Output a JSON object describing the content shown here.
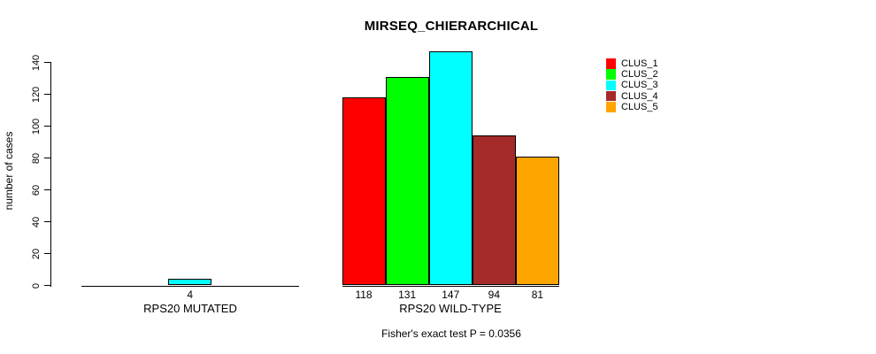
{
  "chart_data": {
    "type": "bar",
    "title": "MIRSEQ_CHIERARCHICAL",
    "ylabel": "number of cases",
    "annotation": "Fisher's exact test P = 0.0356",
    "ylim": [
      0,
      140
    ],
    "yticks": [
      0,
      20,
      40,
      60,
      80,
      100,
      120,
      140
    ],
    "grid": false,
    "legend_position": "top-right",
    "series": [
      {
        "name": "CLUS_1",
        "color": "#FF0000"
      },
      {
        "name": "CLUS_2",
        "color": "#00FF00"
      },
      {
        "name": "CLUS_3",
        "color": "#00FFFF"
      },
      {
        "name": "CLUS_4",
        "color": "#A52A2A"
      },
      {
        "name": "CLUS_5",
        "color": "#FFA500"
      }
    ],
    "groups": [
      {
        "label": "RPS20 MUTATED",
        "values": [
          0,
          0,
          4,
          0,
          0
        ],
        "bar_labels": [
          "",
          "",
          "4",
          "",
          ""
        ]
      },
      {
        "label": "RPS20 WILD-TYPE",
        "values": [
          118,
          131,
          147,
          94,
          81
        ],
        "bar_labels": [
          "118",
          "131",
          "147",
          "94",
          "81"
        ]
      }
    ]
  }
}
